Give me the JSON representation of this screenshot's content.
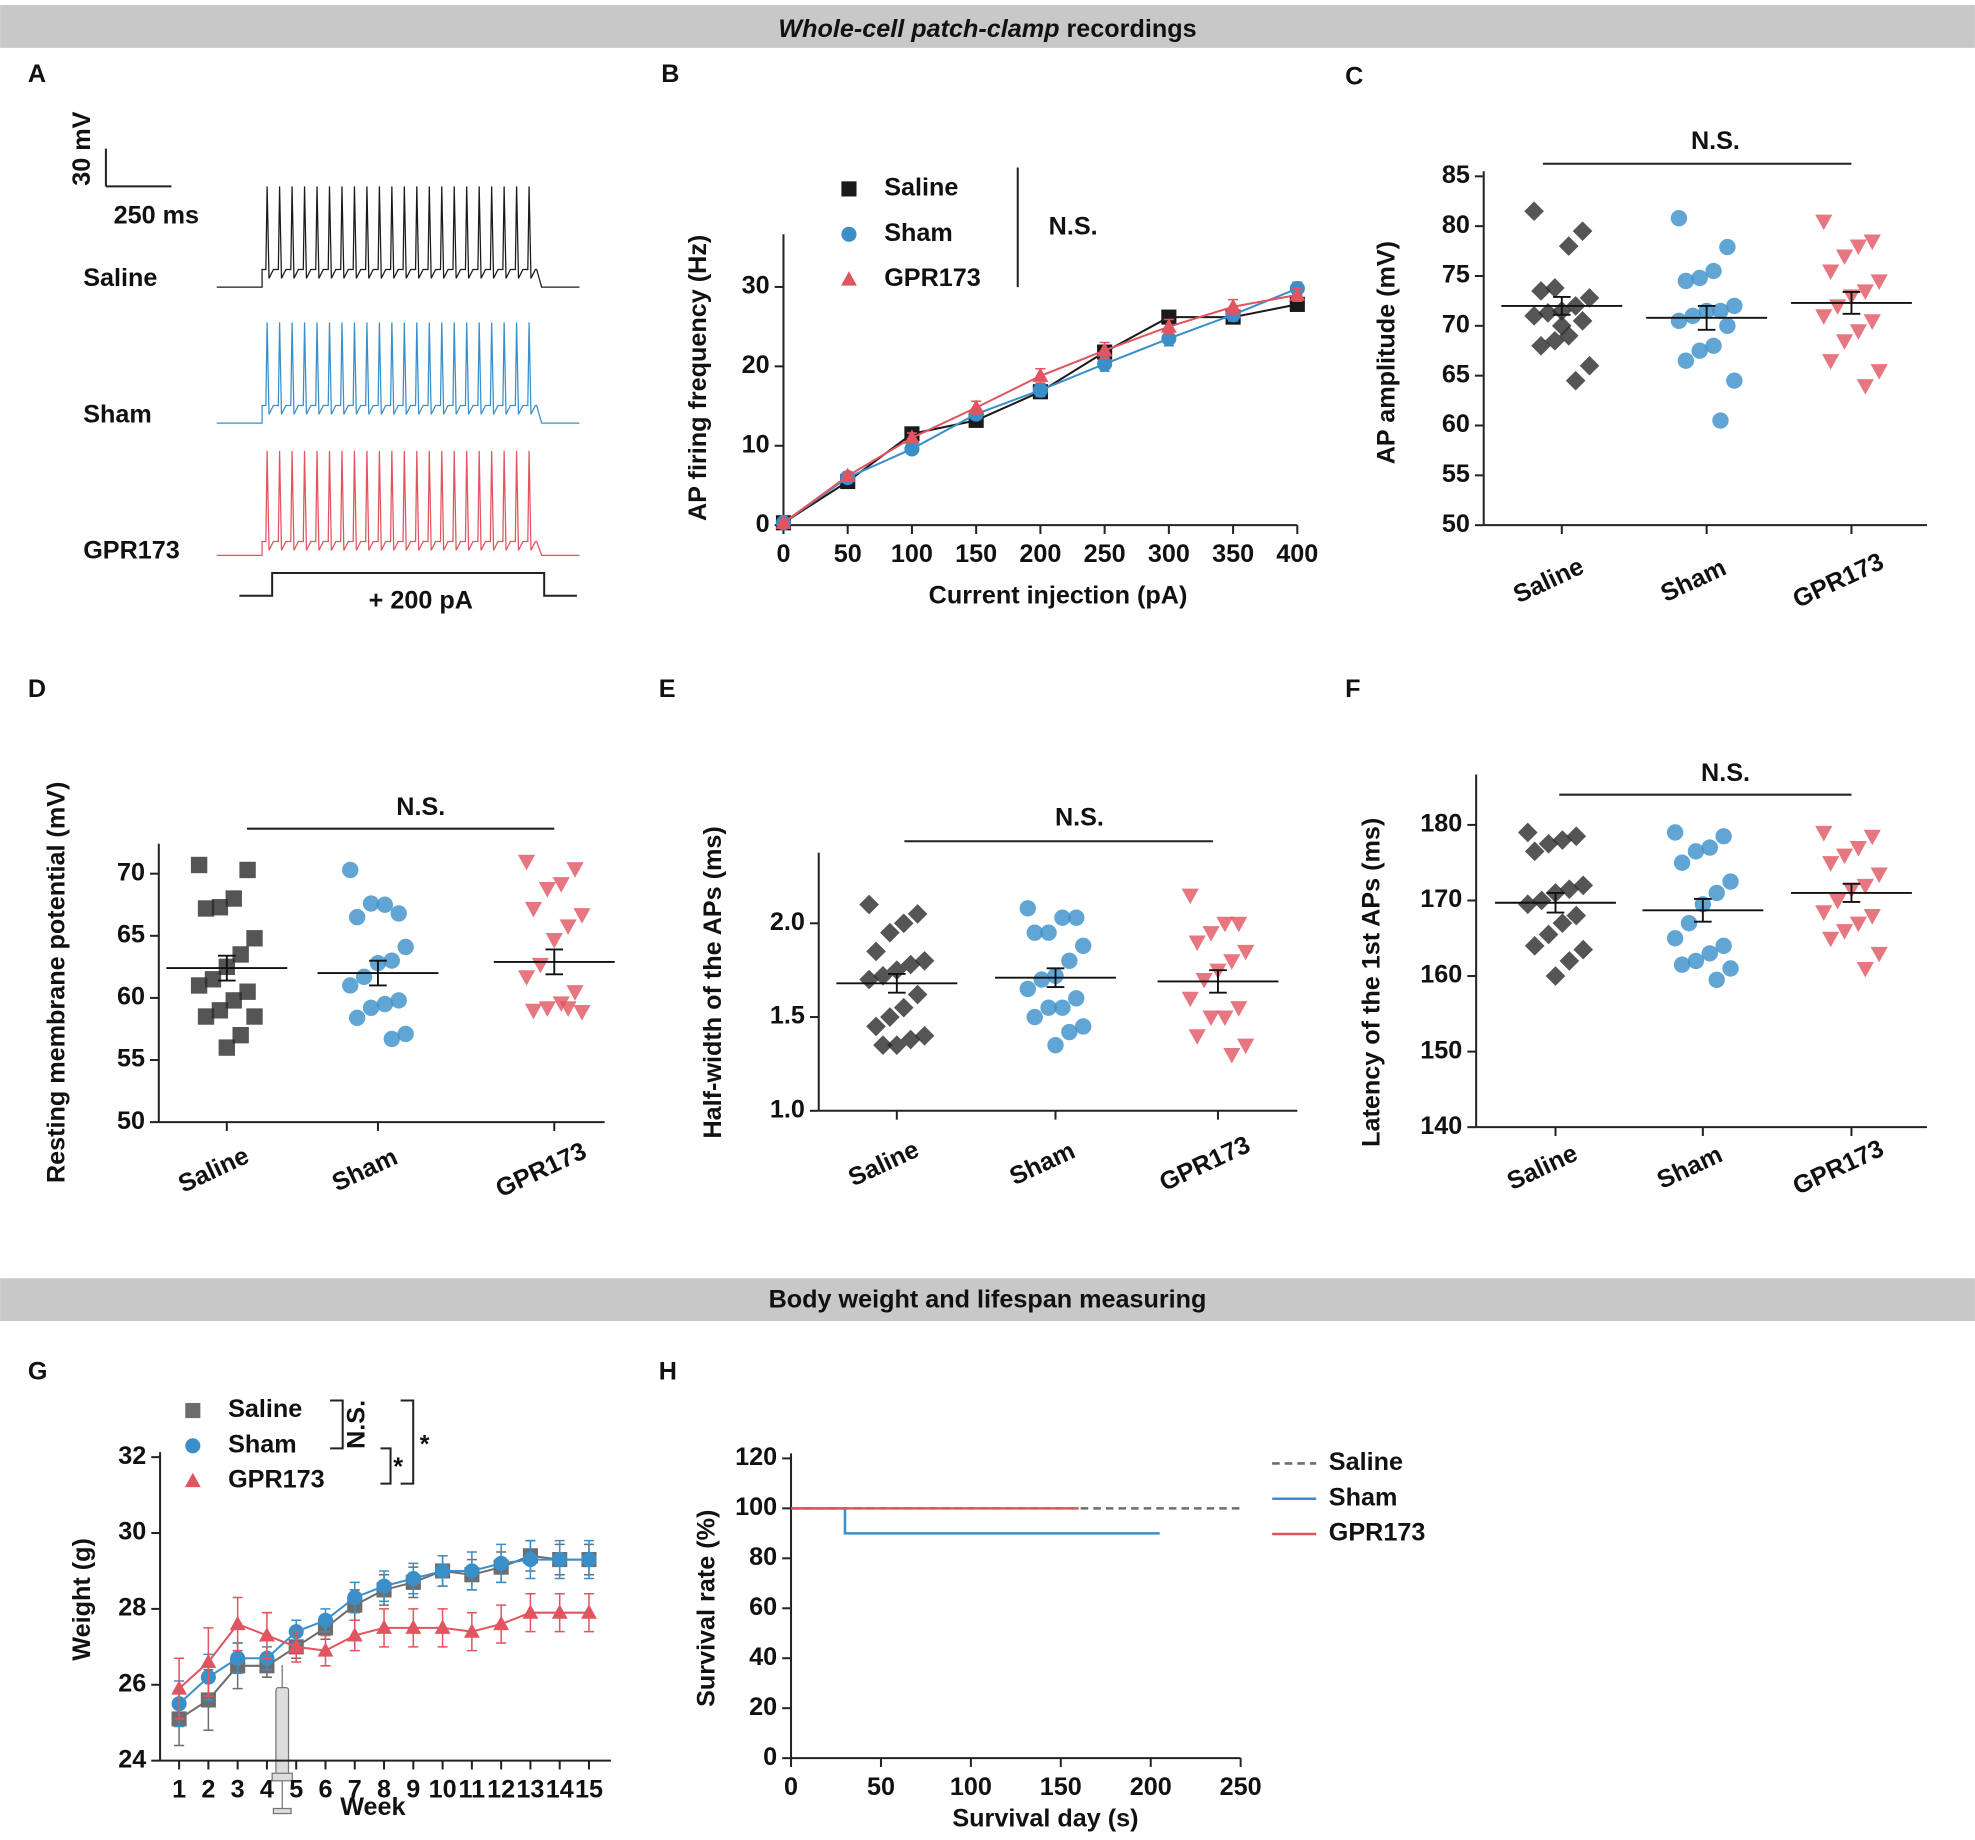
{
  "sections": [
    {
      "italic": "Whole-cell patch-clamp",
      "text": "recordings"
    },
    {
      "text": "Body weight and lifespan measuring"
    }
  ],
  "chart_data": [
    {
      "type": "traces",
      "panel": "A",
      "scale_bar": {
        "y": "30 mV",
        "x": "250 ms"
      },
      "series": [
        {
          "name": "Saline",
          "color": "#1a1a1a"
        },
        {
          "name": "Sham",
          "color": "#3a8fc9"
        },
        {
          "name": "GPR173",
          "color": "#e05560"
        }
      ],
      "stimulus": "+ 200 pA"
    },
    {
      "type": "line",
      "panel": "B",
      "x": [
        0,
        50,
        100,
        150,
        200,
        250,
        300,
        350,
        400
      ],
      "xlim": [
        0,
        400
      ],
      "xticks": [
        0,
        50,
        100,
        150,
        200,
        250,
        300,
        350,
        400
      ],
      "ylim": [
        0,
        36
      ],
      "yticks": [
        0,
        10,
        20,
        30
      ],
      "xlabel": "Current injection (pA)",
      "ylabel": "AP firing frequency (Hz)",
      "annotations": [
        "N.S."
      ],
      "series": [
        {
          "name": "Saline",
          "color": "#1a1a1a",
          "marker": "square",
          "values": [
            0.3,
            5.5,
            11.5,
            13.2,
            16.8,
            21.8,
            26.2,
            26.2,
            27.8
          ],
          "errors": [
            0.2,
            0.5,
            0.5,
            0.6,
            0.7,
            0.8,
            0.8,
            0.7,
            0.7
          ]
        },
        {
          "name": "Sham",
          "color": "#3a8fc9",
          "marker": "circle",
          "values": [
            0.3,
            6.0,
            9.6,
            14.0,
            17.0,
            20.3,
            23.5,
            26.5,
            29.8
          ],
          "errors": [
            0.2,
            0.5,
            0.5,
            0.7,
            0.8,
            0.9,
            0.9,
            0.8,
            0.8
          ]
        },
        {
          "name": "GPR173",
          "color": "#e05560",
          "marker": "triangle",
          "values": [
            0.3,
            6.2,
            11.0,
            14.8,
            18.8,
            22.0,
            25.0,
            27.5,
            29.0
          ],
          "errors": [
            0.2,
            0.5,
            0.6,
            0.8,
            0.9,
            1.0,
            0.9,
            0.9,
            0.8
          ]
        }
      ]
    },
    {
      "type": "strip",
      "panel": "C",
      "ylabel": "AP amplitude (mV)",
      "ylim": [
        50,
        85
      ],
      "yticks": [
        50,
        55,
        60,
        65,
        70,
        75,
        80,
        85
      ],
      "annotations": [
        "N.S."
      ],
      "groups": [
        {
          "name": "Saline",
          "color": "#2a2a2a",
          "marker": "diamond",
          "values": [
            81.5,
            79.5,
            78,
            73.8,
            73.5,
            72.8,
            72,
            71.5,
            71.3,
            71,
            70.5,
            69,
            68.5,
            68,
            66,
            64.5,
            70
          ],
          "mean": 72,
          "sem": 0.9
        },
        {
          "name": "Sham",
          "color": "#3a8fc9",
          "marker": "circle",
          "values": [
            80.8,
            77.9,
            75.5,
            74.8,
            74.5,
            72,
            71.5,
            71.5,
            71,
            70.5,
            70,
            68,
            67.5,
            66.5,
            64.5,
            60.5
          ],
          "mean": 70.8,
          "sem": 1.2
        },
        {
          "name": "GPR173",
          "color": "#e05560",
          "marker": "tridown",
          "values": [
            80.5,
            78.5,
            78,
            77,
            75.5,
            74.5,
            73.5,
            73,
            72,
            71,
            70.5,
            69.5,
            68.5,
            66.5,
            65.5,
            64
          ],
          "mean": 72.3,
          "sem": 1.1
        }
      ]
    },
    {
      "type": "strip",
      "panel": "D",
      "ylabel": "Resting membrane potential (mV)",
      "ylim": [
        50,
        72
      ],
      "yticks": [
        50,
        55,
        60,
        65,
        70
      ],
      "annotations": [
        "N.S."
      ],
      "groups": [
        {
          "name": "Saline",
          "color": "#2a2a2a",
          "marker": "square",
          "values": [
            70.7,
            70.3,
            68,
            67.3,
            67.2,
            64.8,
            63.5,
            62.5,
            61.5,
            61,
            60.5,
            59.8,
            59,
            58.5,
            58.5,
            57,
            56
          ],
          "mean": 62.4,
          "sem": 1.0
        },
        {
          "name": "Sham",
          "color": "#3a8fc9",
          "marker": "circle",
          "values": [
            70.3,
            66.8,
            67.5,
            67.6,
            66.5,
            64.1,
            63,
            62.8,
            61.7,
            61,
            59.8,
            59.5,
            59.2,
            58.4,
            57.1,
            56.7
          ],
          "mean": 62,
          "sem": 1.0
        },
        {
          "name": "GPR173",
          "color": "#e05560",
          "marker": "tridown",
          "values": [
            71,
            70.4,
            69.2,
            68.8,
            67.2,
            66.7,
            65.8,
            64.7,
            62.7,
            61.7,
            60.5,
            59.6,
            59.2,
            59,
            58.9,
            59.2
          ],
          "mean": 62.9,
          "sem": 1.0
        }
      ]
    },
    {
      "type": "strip",
      "panel": "E",
      "ylabel": "Half-width  of the APs  (ms)",
      "ylim": [
        1.0,
        2.35
      ],
      "yticks": [
        {
          "value": 1.0,
          "label": "1.0"
        },
        1.5,
        {
          "value": 2.0,
          "label": "2.0"
        }
      ],
      "annotations": [
        "N.S."
      ],
      "groups": [
        {
          "name": "Saline",
          "color": "#2a2a2a",
          "marker": "diamond",
          "values": [
            2.1,
            2.05,
            2.0,
            1.95,
            1.85,
            1.8,
            1.78,
            1.75,
            1.72,
            1.7,
            1.62,
            1.55,
            1.5,
            1.45,
            1.4,
            1.38,
            1.35,
            1.35
          ],
          "mean": 1.68,
          "sem": 0.05
        },
        {
          "name": "Sham",
          "color": "#3a8fc9",
          "marker": "circle",
          "values": [
            2.08,
            2.03,
            2.03,
            1.95,
            1.95,
            1.88,
            1.8,
            1.72,
            1.7,
            1.65,
            1.6,
            1.55,
            1.55,
            1.5,
            1.45,
            1.42,
            1.35
          ],
          "mean": 1.71,
          "sem": 0.05
        },
        {
          "name": "GPR173",
          "color": "#e05560",
          "marker": "tridown",
          "values": [
            2.15,
            2.0,
            2.0,
            1.95,
            1.9,
            1.85,
            1.8,
            1.75,
            1.7,
            1.6,
            1.55,
            1.5,
            1.5,
            1.4,
            1.35,
            1.3
          ],
          "mean": 1.69,
          "sem": 0.06
        }
      ]
    },
    {
      "type": "strip",
      "panel": "F",
      "ylabel": "Latency  of the 1st APs  (ms)",
      "ylim": [
        140,
        186
      ],
      "yticks": [
        140,
        150,
        160,
        170,
        180
      ],
      "annotations": [
        "N.S."
      ],
      "groups": [
        {
          "name": "Saline",
          "color": "#2a2a2a",
          "marker": "diamond",
          "values": [
            179,
            178.5,
            178,
            177.5,
            176.5,
            172,
            171.5,
            171,
            170,
            169.5,
            168,
            167,
            165.5,
            164,
            163.5,
            162,
            160
          ],
          "mean": 169.7,
          "sem": 1.3
        },
        {
          "name": "Sham",
          "color": "#3a8fc9",
          "marker": "circle",
          "values": [
            179,
            178.5,
            177,
            176.5,
            175,
            172.5,
            171,
            169.5,
            167,
            165,
            164,
            163,
            162,
            161.5,
            161,
            159.5
          ],
          "mean": 168.7,
          "sem": 1.5
        },
        {
          "name": "GPR173",
          "color": "#e05560",
          "marker": "tridown",
          "values": [
            179,
            178.5,
            177,
            176,
            175,
            173.5,
            172,
            171.5,
            170,
            168.5,
            168,
            167,
            166,
            165,
            163,
            161
          ],
          "mean": 171,
          "sem": 1.2
        }
      ]
    },
    {
      "type": "line",
      "panel": "G",
      "x": [
        1,
        2,
        3,
        4,
        5,
        6,
        7,
        8,
        9,
        10,
        11,
        12,
        13,
        14,
        15
      ],
      "xlim": [
        0.35,
        15.75
      ],
      "xticks": [
        1,
        2,
        3,
        4,
        5,
        6,
        7,
        8,
        9,
        10,
        11,
        12,
        13,
        14,
        15
      ],
      "ylim": [
        24,
        32
      ],
      "yticks": [
        24,
        26,
        28,
        30,
        32
      ],
      "xlabel": "Week",
      "ylabel": "Weight (g)",
      "annotations": [
        "N.S.",
        "*",
        "*"
      ],
      "series": [
        {
          "name": "Saline",
          "color": "#6d6d6d",
          "marker": "square",
          "values": [
            25.1,
            25.6,
            26.5,
            26.5,
            27.0,
            27.5,
            28.1,
            28.5,
            28.7,
            29.0,
            28.9,
            29.1,
            29.4,
            29.3,
            29.3
          ],
          "errors": [
            0.7,
            0.8,
            0.6,
            0.3,
            0.3,
            0.3,
            0.4,
            0.4,
            0.4,
            0.4,
            0.4,
            0.4,
            0.4,
            0.4,
            0.4
          ]
        },
        {
          "name": "Sham",
          "color": "#3a8fc9",
          "marker": "circle",
          "values": [
            25.5,
            26.2,
            26.7,
            26.7,
            27.4,
            27.7,
            28.3,
            28.6,
            28.8,
            29.0,
            29.0,
            29.2,
            29.3,
            29.3,
            29.3
          ],
          "errors": [
            0.6,
            0.6,
            0.4,
            0.3,
            0.3,
            0.3,
            0.4,
            0.4,
            0.4,
            0.4,
            0.5,
            0.5,
            0.5,
            0.5,
            0.5
          ]
        },
        {
          "name": "GPR173",
          "color": "#e05560",
          "marker": "triangle",
          "values": [
            25.9,
            26.6,
            27.6,
            27.3,
            27.0,
            26.9,
            27.3,
            27.5,
            27.5,
            27.5,
            27.4,
            27.6,
            27.9,
            27.9,
            27.9
          ],
          "errors": [
            0.8,
            0.9,
            0.7,
            0.6,
            0.4,
            0.4,
            0.4,
            0.5,
            0.5,
            0.5,
            0.5,
            0.5,
            0.5,
            0.5,
            0.5
          ]
        }
      ]
    },
    {
      "type": "step",
      "panel": "H",
      "xlim": [
        0,
        250
      ],
      "xticks": [
        0,
        50,
        100,
        150,
        200,
        250
      ],
      "ylim": [
        0,
        120
      ],
      "yticks": [
        0,
        20,
        40,
        60,
        80,
        100,
        120
      ],
      "xlabel": "Survival day (s)",
      "ylabel": "Survival rate (%)",
      "series": [
        {
          "name": "Saline",
          "color": "#6d6d6d",
          "dashed": true,
          "x": [
            0,
            250
          ],
          "values": [
            100,
            100
          ]
        },
        {
          "name": "Sham",
          "color": "#3a8fc9",
          "dashed": false,
          "x": [
            0,
            30,
            30,
            205
          ],
          "values": [
            100,
            100,
            90,
            90
          ]
        },
        {
          "name": "GPR173",
          "color": "#e05560",
          "dashed": false,
          "x": [
            0,
            160
          ],
          "values": [
            100,
            100
          ]
        }
      ]
    }
  ]
}
